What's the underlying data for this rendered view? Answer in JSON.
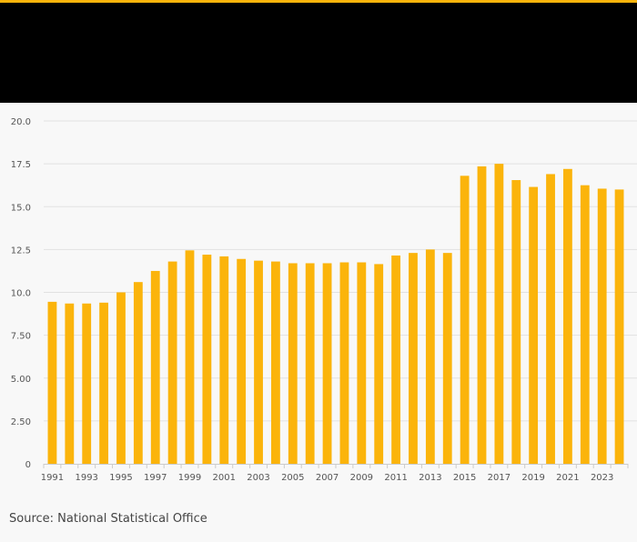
{
  "colors": {
    "accent": "#fbb40b",
    "bar": "#fbb40b",
    "header_background": "#000000",
    "page_background": "#f8f8f8",
    "grid": "#e2e2e2",
    "axis": "#cccccc",
    "tick_text": "#555555"
  },
  "source": "Source: National Statistical Office",
  "chart_data": {
    "type": "bar",
    "title": "",
    "xlabel": "",
    "ylabel": "",
    "ylim": [
      0,
      20
    ],
    "grid": true,
    "yticks": [
      0,
      2.5,
      5,
      7.5,
      10,
      12.5,
      15,
      17.5,
      20
    ],
    "ytick_labels": [
      "0",
      "2.50",
      "5.00",
      "7.50",
      "10.0",
      "12.5",
      "15.0",
      "17.5",
      "20.0"
    ],
    "xtick_labels": [
      "1991",
      "1993",
      "1995",
      "1997",
      "1999",
      "2001",
      "2003",
      "2005",
      "2007",
      "2009",
      "2011",
      "2013",
      "2015",
      "2017",
      "2019",
      "2021",
      "2023"
    ],
    "categories": [
      "1991",
      "1992",
      "1993",
      "1994",
      "1995",
      "1996",
      "1997",
      "1998",
      "1999",
      "2000",
      "2001",
      "2002",
      "2003",
      "2004",
      "2005",
      "2006",
      "2007",
      "2008",
      "2009",
      "2010",
      "2011",
      "2012",
      "2013",
      "2014",
      "2015",
      "2016",
      "2017",
      "2018",
      "2019",
      "2020",
      "2021",
      "2022",
      "2023",
      "2024"
    ],
    "values": [
      9.45,
      9.35,
      9.35,
      9.4,
      10.0,
      10.6,
      11.25,
      11.8,
      12.45,
      12.2,
      12.1,
      11.95,
      11.85,
      11.8,
      11.7,
      11.7,
      11.7,
      11.75,
      11.75,
      11.65,
      12.15,
      12.3,
      12.5,
      12.3,
      16.8,
      17.35,
      17.5,
      16.55,
      16.15,
      16.9,
      17.2,
      16.25,
      16.05,
      16.0
    ]
  }
}
